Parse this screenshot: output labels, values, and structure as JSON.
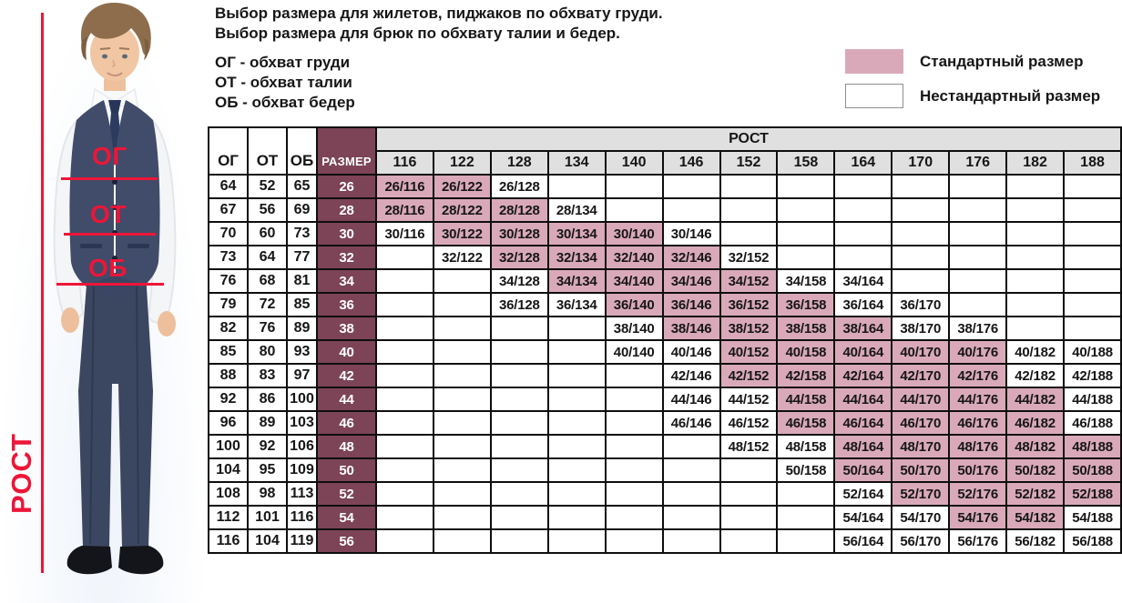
{
  "intro": {
    "line1": "Выбор размера для жилетов, пиджаков по обхвату груди.",
    "line2": "Выбор размера для брюк по обхвату талии и бедер.",
    "abbr1": "ОГ - обхват груди",
    "abbr2": "ОТ - обхват талии",
    "abbr3": "ОБ - обхват бедер"
  },
  "legend": {
    "standard_label": "Стандартный размер",
    "nonstandard_label": "Нестандартный размер",
    "standard_color": "#d9a9ba",
    "nonstandard_color": "#ffffff"
  },
  "figure": {
    "chest_label": "ОГ",
    "waist_label": "ОТ",
    "hips_label": "ОБ",
    "height_label": "РОСТ",
    "accent_color": "#ee1538"
  },
  "chart_data": {
    "type": "table",
    "header": {
      "og": "ОГ",
      "ot": "ОТ",
      "ob": "ОБ",
      "size": "РАЗМЕР",
      "height_group": "РОСТ"
    },
    "heights": [
      "116",
      "122",
      "128",
      "134",
      "140",
      "146",
      "152",
      "158",
      "164",
      "170",
      "176",
      "182",
      "188"
    ],
    "cell_types": {
      "S": "Стандартный размер",
      "N": "Нестандартный размер"
    },
    "colors": {
      "standard_cell": "#d9a9ba",
      "size_column": "#7c4456",
      "header_bg": "#e0e0e0",
      "border": "#0e0e0e"
    },
    "rows": [
      {
        "og": "64",
        "ot": "52",
        "ob": "65",
        "size": "26",
        "cells": [
          [
            "26/116",
            "S"
          ],
          [
            "26/122",
            "S"
          ],
          [
            "26/128",
            "N"
          ],
          null,
          null,
          null,
          null,
          null,
          null,
          null,
          null,
          null,
          null
        ]
      },
      {
        "og": "67",
        "ot": "56",
        "ob": "69",
        "size": "28",
        "cells": [
          [
            "28/116",
            "S"
          ],
          [
            "28/122",
            "S"
          ],
          [
            "28/128",
            "S"
          ],
          [
            "28/134",
            "N"
          ],
          null,
          null,
          null,
          null,
          null,
          null,
          null,
          null,
          null
        ]
      },
      {
        "og": "70",
        "ot": "60",
        "ob": "73",
        "size": "30",
        "cells": [
          [
            "30/116",
            "N"
          ],
          [
            "30/122",
            "S"
          ],
          [
            "30/128",
            "S"
          ],
          [
            "30/134",
            "S"
          ],
          [
            "30/140",
            "S"
          ],
          [
            "30/146",
            "N"
          ],
          null,
          null,
          null,
          null,
          null,
          null,
          null
        ]
      },
      {
        "og": "73",
        "ot": "64",
        "ob": "77",
        "size": "32",
        "cells": [
          null,
          [
            "32/122",
            "N"
          ],
          [
            "32/128",
            "S"
          ],
          [
            "32/134",
            "S"
          ],
          [
            "32/140",
            "S"
          ],
          [
            "32/146",
            "S"
          ],
          [
            "32/152",
            "N"
          ],
          null,
          null,
          null,
          null,
          null,
          null
        ]
      },
      {
        "og": "76",
        "ot": "68",
        "ob": "81",
        "size": "34",
        "cells": [
          null,
          null,
          [
            "34/128",
            "N"
          ],
          [
            "34/134",
            "S"
          ],
          [
            "34/140",
            "S"
          ],
          [
            "34/146",
            "S"
          ],
          [
            "34/152",
            "S"
          ],
          [
            "34/158",
            "N"
          ],
          [
            "34/164",
            "N"
          ],
          null,
          null,
          null,
          null
        ]
      },
      {
        "og": "79",
        "ot": "72",
        "ob": "85",
        "size": "36",
        "cells": [
          null,
          null,
          [
            "36/128",
            "N"
          ],
          [
            "36/134",
            "N"
          ],
          [
            "36/140",
            "S"
          ],
          [
            "36/146",
            "S"
          ],
          [
            "36/152",
            "S"
          ],
          [
            "36/158",
            "S"
          ],
          [
            "36/164",
            "N"
          ],
          [
            "36/170",
            "N"
          ],
          null,
          null,
          null
        ]
      },
      {
        "og": "82",
        "ot": "76",
        "ob": "89",
        "size": "38",
        "cells": [
          null,
          null,
          null,
          null,
          [
            "38/140",
            "N"
          ],
          [
            "38/146",
            "S"
          ],
          [
            "38/152",
            "S"
          ],
          [
            "38/158",
            "S"
          ],
          [
            "38/164",
            "S"
          ],
          [
            "38/170",
            "N"
          ],
          [
            "38/176",
            "N"
          ],
          null,
          null
        ]
      },
      {
        "og": "85",
        "ot": "80",
        "ob": "93",
        "size": "40",
        "cells": [
          null,
          null,
          null,
          null,
          [
            "40/140",
            "N"
          ],
          [
            "40/146",
            "N"
          ],
          [
            "40/152",
            "S"
          ],
          [
            "40/158",
            "S"
          ],
          [
            "40/164",
            "S"
          ],
          [
            "40/170",
            "S"
          ],
          [
            "40/176",
            "S"
          ],
          [
            "40/182",
            "N"
          ],
          [
            "40/188",
            "N"
          ]
        ]
      },
      {
        "og": "88",
        "ot": "83",
        "ob": "97",
        "size": "42",
        "cells": [
          null,
          null,
          null,
          null,
          null,
          [
            "42/146",
            "N"
          ],
          [
            "42/152",
            "S"
          ],
          [
            "42/158",
            "S"
          ],
          [
            "42/164",
            "S"
          ],
          [
            "42/170",
            "S"
          ],
          [
            "42/176",
            "S"
          ],
          [
            "42/182",
            "N"
          ],
          [
            "42/188",
            "N"
          ]
        ]
      },
      {
        "og": "92",
        "ot": "86",
        "ob": "100",
        "size": "44",
        "cells": [
          null,
          null,
          null,
          null,
          null,
          [
            "44/146",
            "N"
          ],
          [
            "44/152",
            "N"
          ],
          [
            "44/158",
            "S"
          ],
          [
            "44/164",
            "S"
          ],
          [
            "44/170",
            "S"
          ],
          [
            "44/176",
            "S"
          ],
          [
            "44/182",
            "S"
          ],
          [
            "44/188",
            "N"
          ]
        ]
      },
      {
        "og": "96",
        "ot": "89",
        "ob": "103",
        "size": "46",
        "cells": [
          null,
          null,
          null,
          null,
          null,
          [
            "46/146",
            "N"
          ],
          [
            "46/152",
            "N"
          ],
          [
            "46/158",
            "S"
          ],
          [
            "46/164",
            "S"
          ],
          [
            "46/170",
            "S"
          ],
          [
            "46/176",
            "S"
          ],
          [
            "46/182",
            "S"
          ],
          [
            "46/188",
            "N"
          ]
        ]
      },
      {
        "og": "100",
        "ot": "92",
        "ob": "106",
        "size": "48",
        "cells": [
          null,
          null,
          null,
          null,
          null,
          null,
          [
            "48/152",
            "N"
          ],
          [
            "48/158",
            "N"
          ],
          [
            "48/164",
            "S"
          ],
          [
            "48/170",
            "S"
          ],
          [
            "48/176",
            "S"
          ],
          [
            "48/182",
            "S"
          ],
          [
            "48/188",
            "S"
          ]
        ]
      },
      {
        "og": "104",
        "ot": "95",
        "ob": "109",
        "size": "50",
        "cells": [
          null,
          null,
          null,
          null,
          null,
          null,
          null,
          [
            "50/158",
            "N"
          ],
          [
            "50/164",
            "S"
          ],
          [
            "50/170",
            "S"
          ],
          [
            "50/176",
            "S"
          ],
          [
            "50/182",
            "S"
          ],
          [
            "50/188",
            "S"
          ]
        ]
      },
      {
        "og": "108",
        "ot": "98",
        "ob": "113",
        "size": "52",
        "cells": [
          null,
          null,
          null,
          null,
          null,
          null,
          null,
          null,
          [
            "52/164",
            "N"
          ],
          [
            "52/170",
            "S"
          ],
          [
            "52/176",
            "S"
          ],
          [
            "52/182",
            "S"
          ],
          [
            "52/188",
            "S"
          ]
        ]
      },
      {
        "og": "112",
        "ot": "101",
        "ob": "116",
        "size": "54",
        "cells": [
          null,
          null,
          null,
          null,
          null,
          null,
          null,
          null,
          [
            "54/164",
            "N"
          ],
          [
            "54/170",
            "N"
          ],
          [
            "54/176",
            "S"
          ],
          [
            "54/182",
            "S"
          ],
          [
            "54/188",
            "N"
          ]
        ]
      },
      {
        "og": "116",
        "ot": "104",
        "ob": "119",
        "size": "56",
        "cells": [
          null,
          null,
          null,
          null,
          null,
          null,
          null,
          null,
          [
            "56/164",
            "N"
          ],
          [
            "56/170",
            "N"
          ],
          [
            "56/176",
            "N"
          ],
          [
            "56/182",
            "N"
          ],
          [
            "56/188",
            "N"
          ]
        ]
      }
    ]
  }
}
